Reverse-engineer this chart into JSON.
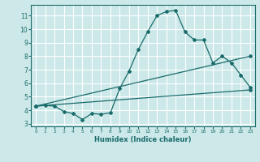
{
  "title": "",
  "xlabel": "Humidex (Indice chaleur)",
  "ylabel": "",
  "xlim": [
    -0.5,
    23.5
  ],
  "ylim": [
    2.8,
    11.8
  ],
  "yticks": [
    3,
    4,
    5,
    6,
    7,
    8,
    9,
    10,
    11
  ],
  "xticks": [
    0,
    1,
    2,
    3,
    4,
    5,
    6,
    7,
    8,
    9,
    10,
    11,
    12,
    13,
    14,
    15,
    16,
    17,
    18,
    19,
    20,
    21,
    22,
    23
  ],
  "bg_color": "#cce8e8",
  "grid_color": "#ffffff",
  "line_color": "#1a6b6b",
  "line1_x": [
    0,
    1,
    2,
    3,
    4,
    5,
    6,
    7,
    8,
    9,
    10,
    11,
    12,
    13,
    14,
    15,
    16,
    17,
    18,
    19,
    20,
    21,
    22,
    23
  ],
  "line1_y": [
    4.3,
    4.35,
    4.3,
    3.9,
    3.75,
    3.3,
    3.75,
    3.7,
    3.8,
    5.6,
    6.9,
    8.5,
    9.8,
    11.0,
    11.3,
    11.4,
    9.8,
    9.2,
    9.2,
    7.5,
    8.0,
    7.5,
    6.6,
    5.7
  ],
  "line2_x": [
    0,
    23
  ],
  "line2_y": [
    4.3,
    8.0
  ],
  "line3_x": [
    0,
    23
  ],
  "line3_y": [
    4.3,
    5.5
  ]
}
